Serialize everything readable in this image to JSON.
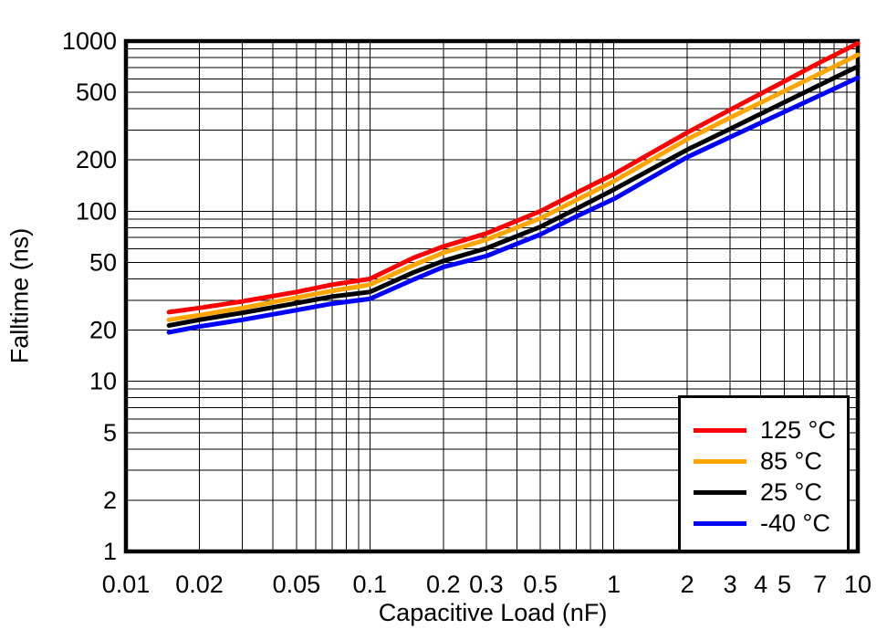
{
  "figure": {
    "background_color": "#ffffff",
    "axis_color": "#000000",
    "grid_color": "#000000"
  },
  "chart_data": {
    "type": "line",
    "title": "",
    "xlabel": "Capacitive Load (nF)",
    "ylabel": "Falltime (ns)",
    "x_scale": "log",
    "y_scale": "log",
    "xlim": [
      0.01,
      10
    ],
    "ylim": [
      1,
      1000
    ],
    "grid": "major and minor log gridlines, solid black",
    "legend_position": "bottom-right",
    "x_tick_values": [
      0.01,
      0.02,
      0.05,
      0.1,
      0.2,
      0.3,
      0.5,
      1,
      2,
      3,
      4,
      5,
      7,
      10
    ],
    "x_tick_labels": [
      "0.01",
      "0.02",
      "0.05",
      "0.1",
      "0.2",
      "0.3",
      "0.5",
      "1",
      "2",
      "3",
      "4",
      "5",
      "7",
      "10"
    ],
    "y_tick_values": [
      1000,
      500,
      200,
      100,
      50,
      20,
      10,
      5,
      2,
      1
    ],
    "y_tick_labels": [
      "1000",
      "500",
      "200",
      "100",
      "50",
      "20",
      "10",
      "5",
      "2",
      "1"
    ],
    "x": [
      0.015,
      0.02,
      0.03,
      0.05,
      0.07,
      0.1,
      0.15,
      0.2,
      0.3,
      0.5,
      0.7,
      1,
      2,
      3,
      5,
      7,
      10
    ],
    "series": [
      {
        "name": "125 °C",
        "color": "#ff0000",
        "values": [
          25.5,
          27,
          29.5,
          33.5,
          37,
          40,
          53,
          62,
          74,
          100,
          128,
          165,
          290,
          395,
          580,
          750,
          970
        ]
      },
      {
        "name": "85 °C",
        "color": "#ffa500",
        "values": [
          23,
          24.5,
          27,
          31,
          34,
          37,
          48,
          57,
          68,
          91,
          116,
          150,
          265,
          355,
          508,
          645,
          830
        ]
      },
      {
        "name": "25 °C",
        "color": "#000000",
        "values": [
          21.3,
          23,
          25.3,
          28.8,
          31.5,
          33.5,
          43.5,
          51,
          60.5,
          81,
          103,
          134,
          230,
          305,
          437,
          553,
          710
        ]
      },
      {
        "name": "-40 °C",
        "color": "#0000ff",
        "values": [
          19.4,
          21,
          23,
          26.2,
          28.6,
          30.5,
          39.5,
          47,
          54.5,
          73,
          93,
          118,
          208,
          273,
          384,
          480,
          609
        ]
      }
    ]
  }
}
